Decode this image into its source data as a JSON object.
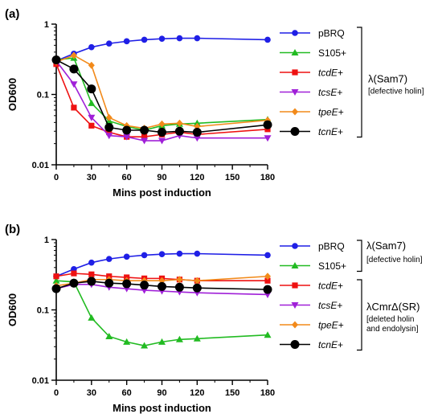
{
  "chart_data": [
    {
      "panel_label": "(a)",
      "type": "line",
      "xlabel": "Mins post induction",
      "ylabel": "OD600",
      "y_scale": "log",
      "xlim": [
        0,
        180
      ],
      "ylim": [
        0.01,
        1
      ],
      "x_ticks": [
        "0",
        "30",
        "60",
        "90",
        "120",
        "150",
        "180"
      ],
      "y_ticks": [
        "0.01",
        "0.1",
        "1"
      ],
      "x": [
        0,
        15,
        30,
        45,
        60,
        75,
        90,
        105,
        120,
        180
      ],
      "series": [
        {
          "name": "pBRQ",
          "italic_part": "",
          "suffix": "",
          "color": "#1f1fe6",
          "marker": "circle",
          "values": [
            0.3,
            0.38,
            0.47,
            0.53,
            0.57,
            0.6,
            0.62,
            0.63,
            0.63,
            0.6
          ]
        },
        {
          "name": "S105+",
          "italic_part": "",
          "suffix": "",
          "color": "#22bb22",
          "marker": "triangle-up",
          "values": [
            0.31,
            0.33,
            0.075,
            0.042,
            0.035,
            0.031,
            0.036,
            0.038,
            0.039,
            0.044
          ]
        },
        {
          "name": "tcdE+",
          "italic_part": "tcdE",
          "suffix": "+",
          "color": "#ee1111",
          "marker": "square",
          "values": [
            0.27,
            0.065,
            0.036,
            0.029,
            0.025,
            0.025,
            0.027,
            0.029,
            0.027,
            0.032
          ]
        },
        {
          "name": "tcsE+",
          "italic_part": "tcsE",
          "suffix": "+",
          "color": "#a020d8",
          "marker": "triangle-down",
          "values": [
            0.3,
            0.14,
            0.047,
            0.026,
            0.025,
            0.022,
            0.022,
            0.026,
            0.024,
            0.024
          ]
        },
        {
          "name": "tpeE+",
          "italic_part": "tpeE",
          "suffix": "+",
          "color": "#f28a1a",
          "marker": "diamond",
          "values": [
            0.29,
            0.36,
            0.26,
            0.047,
            0.036,
            0.033,
            0.038,
            0.039,
            0.035,
            0.043
          ]
        },
        {
          "name": "tcnE+",
          "italic_part": "tcnE",
          "suffix": "+",
          "color": "#000000",
          "marker": "circle-big",
          "values": [
            0.31,
            0.23,
            0.12,
            0.034,
            0.031,
            0.031,
            0.029,
            0.03,
            0.029,
            0.037
          ]
        }
      ],
      "legend_groups": [
        {
          "label": "λ(Sam7)",
          "sublabels": [
            "[defective holin]"
          ]
        }
      ]
    },
    {
      "panel_label": "(b)",
      "type": "line",
      "xlabel": "Mins post induction",
      "ylabel": "OD600",
      "y_scale": "log",
      "xlim": [
        0,
        180
      ],
      "ylim": [
        0.01,
        1
      ],
      "x_ticks": [
        "0",
        "30",
        "60",
        "90",
        "120",
        "150",
        "180"
      ],
      "y_ticks": [
        "0.01",
        "0.1",
        "1"
      ],
      "x": [
        0,
        15,
        30,
        45,
        60,
        75,
        90,
        105,
        120,
        180
      ],
      "series": [
        {
          "name": "pBRQ",
          "italic_part": "",
          "suffix": "",
          "color": "#1f1fe6",
          "marker": "circle",
          "values": [
            0.3,
            0.38,
            0.47,
            0.53,
            0.57,
            0.6,
            0.62,
            0.63,
            0.63,
            0.6
          ]
        },
        {
          "name": "S105+",
          "italic_part": "",
          "suffix": "",
          "color": "#22bb22",
          "marker": "triangle-up",
          "values": [
            0.26,
            0.25,
            0.077,
            0.042,
            0.035,
            0.031,
            0.035,
            0.038,
            0.039,
            0.044
          ]
        },
        {
          "name": "tcdE+",
          "italic_part": "tcdE",
          "suffix": "+",
          "color": "#ee1111",
          "marker": "square",
          "values": [
            0.3,
            0.33,
            0.32,
            0.3,
            0.29,
            0.28,
            0.28,
            0.27,
            0.26,
            0.26
          ]
        },
        {
          "name": "tcsE+",
          "italic_part": "tcsE",
          "suffix": "+",
          "color": "#a020d8",
          "marker": "triangle-down",
          "values": [
            0.2,
            0.23,
            0.23,
            0.21,
            0.2,
            0.19,
            0.185,
            0.18,
            0.175,
            0.165
          ]
        },
        {
          "name": "tpeE+",
          "italic_part": "tpeE",
          "suffix": "+",
          "color": "#f28a1a",
          "marker": "diamond",
          "values": [
            0.22,
            0.24,
            0.27,
            0.27,
            0.26,
            0.26,
            0.26,
            0.27,
            0.26,
            0.3
          ]
        },
        {
          "name": "tcnE+",
          "italic_part": "tcnE",
          "suffix": "+",
          "color": "#000000",
          "marker": "circle-big",
          "values": [
            0.2,
            0.24,
            0.255,
            0.24,
            0.235,
            0.225,
            0.215,
            0.21,
            0.205,
            0.195
          ]
        }
      ],
      "legend_groups": [
        {
          "label": "λ(Sam7)",
          "sublabels": [
            "[defective holin]"
          ]
        },
        {
          "label": "λCmrΔ(SR)",
          "sublabels": [
            "[deleted holin",
            "and endolysin]"
          ]
        }
      ]
    }
  ]
}
